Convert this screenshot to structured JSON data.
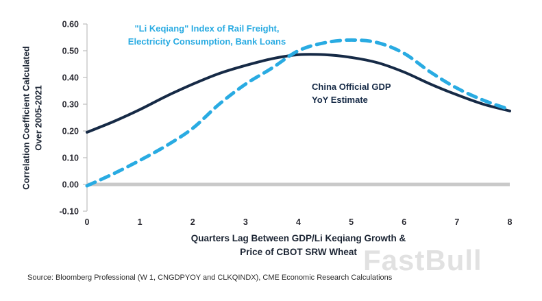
{
  "chart_data": {
    "type": "line",
    "title": "",
    "xlabel_line1": "Quarters Lag Between GDP/Li Keqiang Growth &",
    "xlabel_line2": "Price of CBOT SRW Wheat",
    "ylabel_line1": "Correlation Coefficient Calculated",
    "ylabel_line2": "Over 2005-2021",
    "xlim": [
      0,
      8
    ],
    "ylim": [
      -0.1,
      0.6
    ],
    "x_ticks": [
      0,
      1,
      2,
      3,
      4,
      5,
      6,
      7,
      8
    ],
    "x_tick_labels": [
      "0",
      "1",
      "2",
      "3",
      "4",
      "5",
      "6",
      "7",
      "8"
    ],
    "y_ticks": [
      0.6,
      0.5,
      0.4,
      0.3,
      0.2,
      0.1,
      0.0,
      -0.1
    ],
    "y_tick_labels": [
      "0.60",
      "0.50",
      "0.40",
      "0.30",
      "0.20",
      "0.10",
      "0.00",
      "-0.10"
    ],
    "grid": false,
    "axis_color": "#bdbdbd",
    "zero_line_color": "#c9c9c9",
    "x": [
      0,
      0.5,
      1,
      1.5,
      2,
      2.5,
      3,
      3.5,
      4,
      4.5,
      5,
      5.5,
      6,
      6.5,
      7,
      7.5,
      8
    ],
    "series": [
      {
        "id": "gdp",
        "name": "China Official GDP YoY Estimate",
        "color": "#162a46",
        "style": "solid",
        "width": 4,
        "values": [
          0.195,
          0.235,
          0.28,
          0.33,
          0.375,
          0.415,
          0.445,
          0.47,
          0.485,
          0.485,
          0.475,
          0.455,
          0.42,
          0.375,
          0.335,
          0.3,
          0.275
        ]
      },
      {
        "id": "li-keqiang",
        "name": "\"Li Keqiang\" Index of Rail Freight, Electricity Consumption, Bank Loans",
        "color": "#29abe2",
        "style": "dashed",
        "dash": "13 9",
        "width": 5,
        "values": [
          -0.005,
          0.04,
          0.09,
          0.145,
          0.21,
          0.3,
          0.375,
          0.435,
          0.5,
          0.53,
          0.54,
          0.53,
          0.49,
          0.42,
          0.36,
          0.315,
          0.28
        ]
      }
    ]
  },
  "annotations": {
    "li_keqiang": {
      "line1": "\"Li Keqiang\" Index of Rail Freight,",
      "line2": "Electricity Consumption, Bank Loans"
    },
    "gdp": {
      "line1": "China Official GDP",
      "line2": "YoY Estimate"
    }
  },
  "source": "Source: Bloomberg Professional (W 1, CNGDPYOY and CLKQINDX), CME Economic Research Calculations",
  "watermark": "FastBull"
}
